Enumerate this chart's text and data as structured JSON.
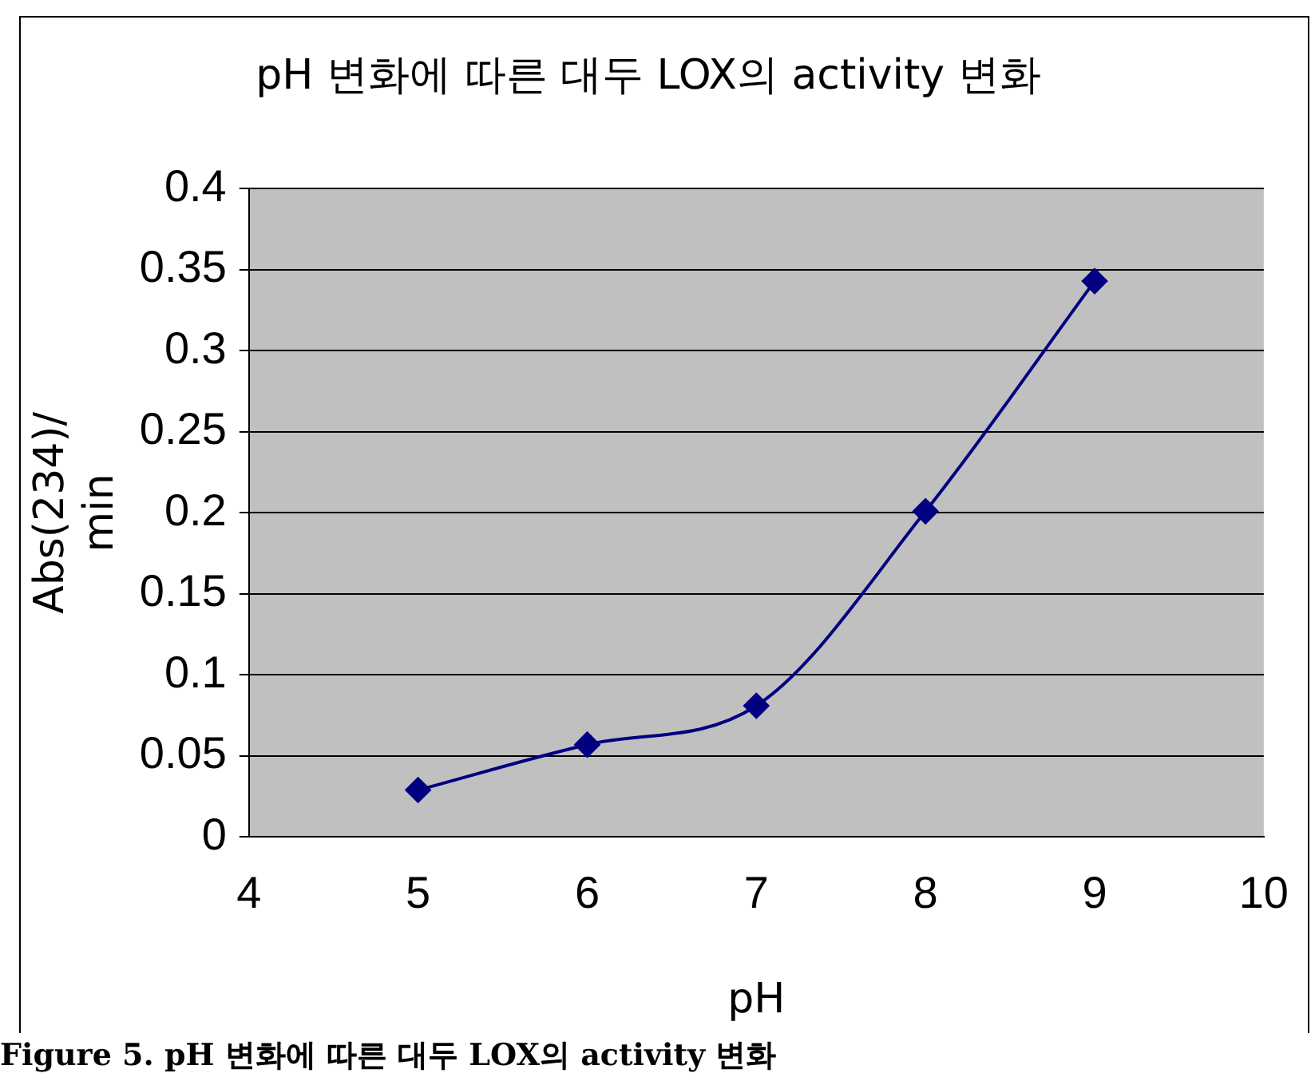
{
  "chart_data": {
    "type": "line",
    "title": "pH 변화에 따른 대두 LOX의 activity 변화",
    "xlabel": "pH",
    "ylabel": "Abs(234)/ min",
    "x": [
      5,
      6,
      7,
      8,
      9
    ],
    "series": [
      {
        "color": "#000080",
        "values": [
          0.029,
          0.057,
          0.081,
          0.201,
          0.343
        ]
      }
    ],
    "xlim": [
      4,
      10
    ],
    "xticks": [
      4,
      5,
      6,
      7,
      8,
      9,
      10
    ],
    "ylim": [
      0,
      0.4
    ],
    "yticks": [
      0,
      0.05,
      0.1,
      0.15,
      0.2,
      0.25,
      0.3,
      0.35,
      0.4
    ],
    "grid": "y",
    "legend": false,
    "marker": "diamond",
    "line_style": "solid",
    "annotations": [
      "Figure 5. pH 변화에 따른 대두 LOX의 activity 변화"
    ]
  }
}
